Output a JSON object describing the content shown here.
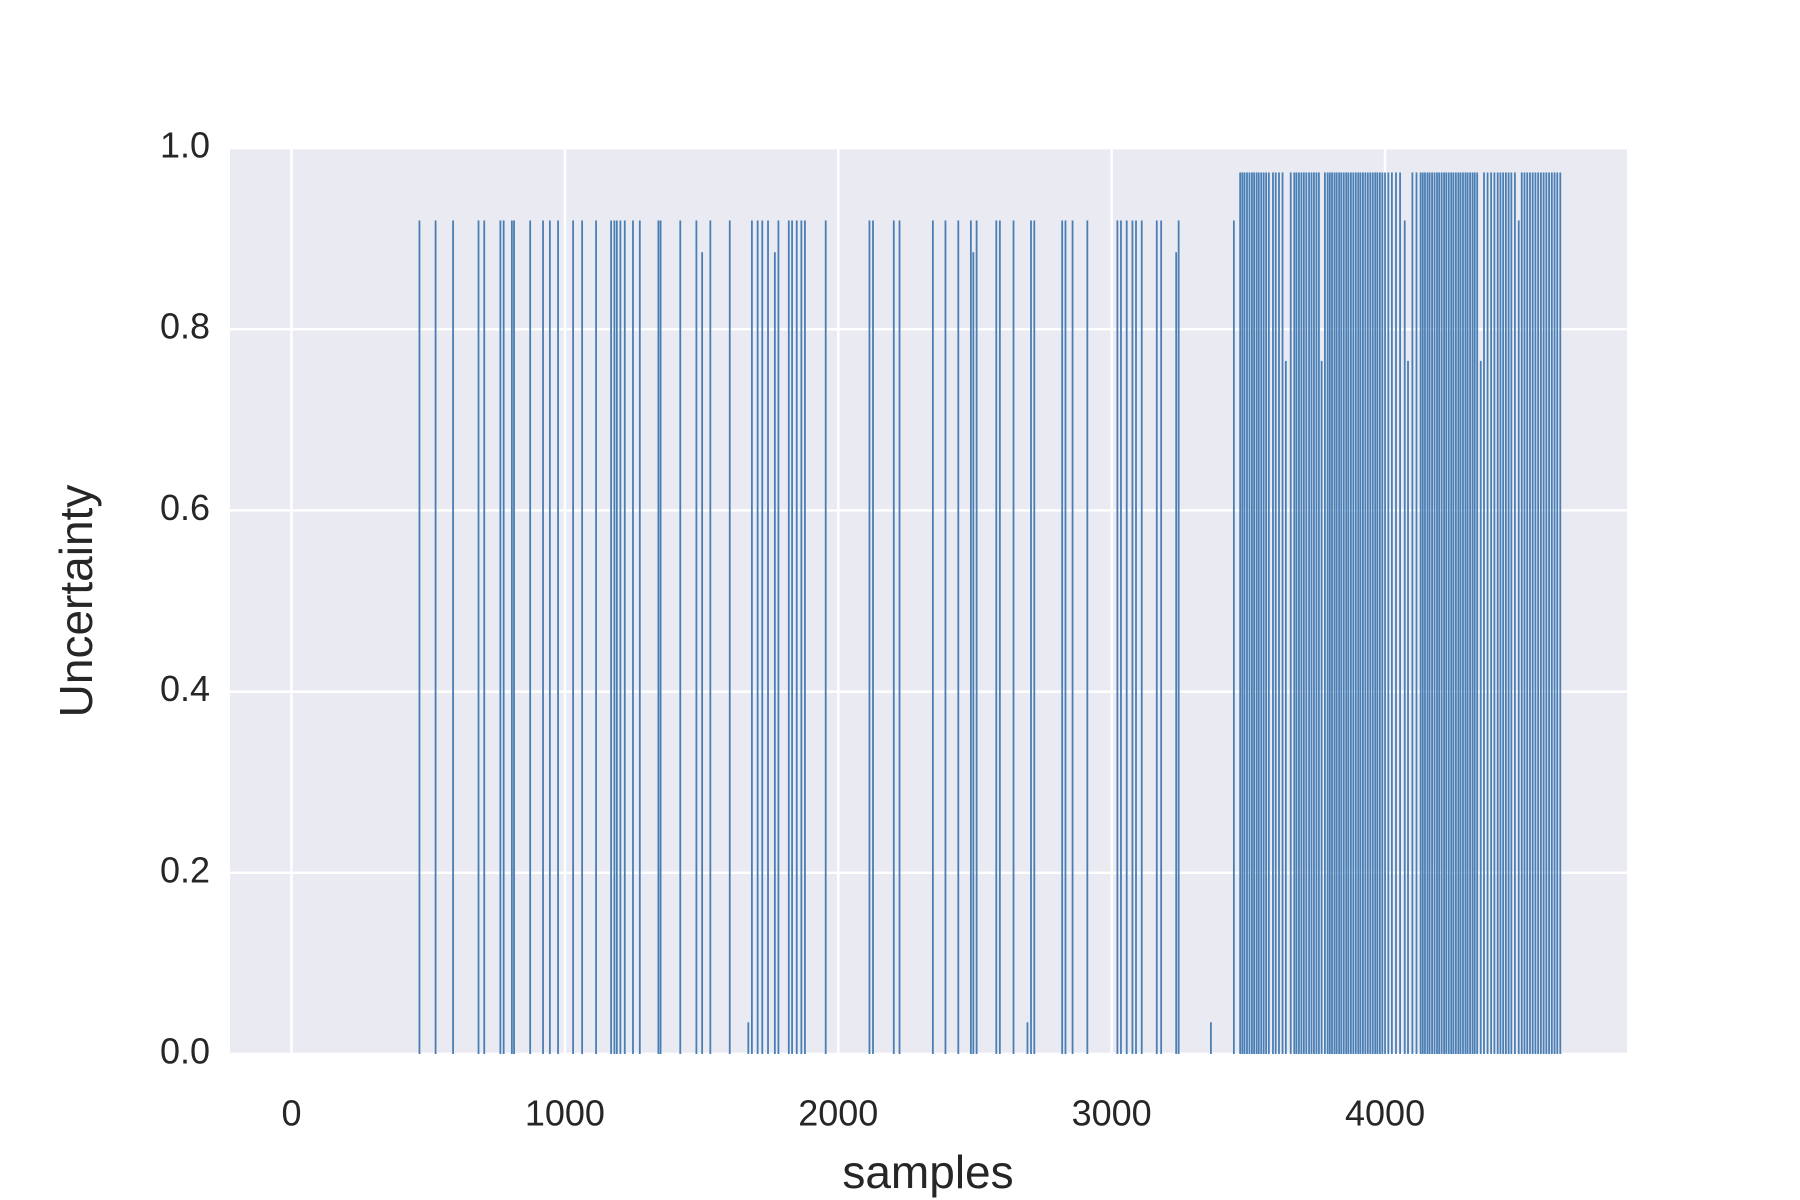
{
  "chart_data": {
    "type": "spike",
    "x_label": "samples",
    "y_label": "Uncertainty",
    "color": "#4a7fb5",
    "grid": true,
    "xlim": [
      -225,
      4885
    ],
    "ylim": [
      0,
      1
    ],
    "xticks": [
      0,
      1000,
      2000,
      3000,
      4000
    ],
    "yticks": [
      {
        "value": 0,
        "label": "0.0"
      },
      0.2,
      0.4,
      0.6,
      0.8,
      {
        "value": 1,
        "label": "1.0"
      }
    ],
    "x": [
      468,
      527,
      591,
      684,
      705,
      764,
      776,
      806,
      814,
      873,
      920,
      945,
      975,
      1030,
      1063,
      1114,
      1169,
      1181,
      1190,
      1203,
      1219,
      1249,
      1274,
      1342,
      1350,
      1422,
      1481,
      1502,
      1532,
      1603,
      1671,
      1684,
      1705,
      1722,
      1743,
      1768,
      1781,
      1819,
      1831,
      1848,
      1865,
      1878,
      1954,
      2114,
      2127,
      2203,
      2224,
      2346,
      2392,
      2439,
      2485,
      2494,
      2506,
      2578,
      2591,
      2641,
      2692,
      2705,
      2717,
      2819,
      2831,
      2857,
      2911,
      3021,
      3034,
      3055,
      3076,
      3089,
      3110,
      3165,
      3181,
      3236,
      3245,
      3363,
      3447,
      3470,
      3478,
      3486,
      3495,
      3504,
      3513,
      3521,
      3530,
      3538,
      3547,
      3556,
      3565,
      3575,
      3590,
      3600,
      3612,
      3625,
      3637,
      3655,
      3668,
      3676,
      3685,
      3694,
      3703,
      3712,
      3722,
      3731,
      3740,
      3749,
      3758,
      3768,
      3780,
      3790,
      3798,
      3806,
      3815,
      3823,
      3832,
      3840,
      3849,
      3858,
      3866,
      3875,
      3884,
      3893,
      3902,
      3910,
      3919,
      3928,
      3937,
      3946,
      3955,
      3964,
      3972,
      3981,
      3990,
      4000,
      4012,
      4025,
      4040,
      4055,
      4072,
      4084,
      4100,
      4115,
      4130,
      4138,
      4146,
      4155,
      4163,
      4172,
      4181,
      4190,
      4198,
      4207,
      4216,
      4224,
      4233,
      4242,
      4250,
      4259,
      4268,
      4276,
      4285,
      4294,
      4302,
      4311,
      4320,
      4328,
      4337,
      4350,
      4362,
      4375,
      4388,
      4400,
      4412,
      4422,
      4432,
      4442,
      4452,
      4462,
      4475,
      4489,
      4500,
      4510,
      4520,
      4530,
      4540,
      4550,
      4560,
      4570,
      4580,
      4590,
      4600,
      4610,
      4620,
      4630,
      4641
    ],
    "values": [
      0.92,
      0.92,
      0.92,
      0.92,
      0.92,
      0.92,
      0.92,
      0.92,
      0.92,
      0.92,
      0.92,
      0.92,
      0.92,
      0.92,
      0.92,
      0.92,
      0.92,
      0.92,
      0.92,
      0.92,
      0.92,
      0.92,
      0.92,
      0.92,
      0.92,
      0.92,
      0.92,
      0.885,
      0.92,
      0.92,
      0.035,
      0.92,
      0.92,
      0.92,
      0.92,
      0.885,
      0.92,
      0.92,
      0.92,
      0.92,
      0.92,
      0.92,
      0.92,
      0.92,
      0.92,
      0.92,
      0.92,
      0.92,
      0.92,
      0.92,
      0.92,
      0.885,
      0.92,
      0.92,
      0.92,
      0.92,
      0.035,
      0.92,
      0.92,
      0.92,
      0.92,
      0.92,
      0.92,
      0.92,
      0.92,
      0.92,
      0.92,
      0.92,
      0.92,
      0.92,
      0.92,
      0.885,
      0.92,
      0.035,
      0.92,
      0.973,
      0.973,
      0.973,
      0.973,
      0.973,
      0.973,
      0.973,
      0.973,
      0.973,
      0.973,
      0.973,
      0.973,
      0.973,
      0.973,
      0.973,
      0.973,
      0.973,
      0.765,
      0.973,
      0.973,
      0.973,
      0.973,
      0.973,
      0.973,
      0.973,
      0.973,
      0.973,
      0.973,
      0.973,
      0.973,
      0.765,
      0.973,
      0.973,
      0.973,
      0.973,
      0.973,
      0.973,
      0.973,
      0.973,
      0.973,
      0.973,
      0.973,
      0.973,
      0.973,
      0.973,
      0.973,
      0.973,
      0.973,
      0.973,
      0.973,
      0.973,
      0.973,
      0.973,
      0.973,
      0.973,
      0.973,
      0.973,
      0.973,
      0.973,
      0.973,
      0.973,
      0.92,
      0.765,
      0.973,
      0.973,
      0.973,
      0.973,
      0.973,
      0.973,
      0.973,
      0.973,
      0.973,
      0.973,
      0.973,
      0.973,
      0.973,
      0.973,
      0.973,
      0.973,
      0.973,
      0.973,
      0.973,
      0.973,
      0.973,
      0.973,
      0.973,
      0.973,
      0.973,
      0.973,
      0.973,
      0.765,
      0.973,
      0.973,
      0.973,
      0.973,
      0.973,
      0.973,
      0.973,
      0.973,
      0.973,
      0.973,
      0.973,
      0.92,
      0.973,
      0.973,
      0.973,
      0.973,
      0.973,
      0.973,
      0.973,
      0.973,
      0.973,
      0.973,
      0.973,
      0.973,
      0.973,
      0.973,
      0.973
    ]
  }
}
